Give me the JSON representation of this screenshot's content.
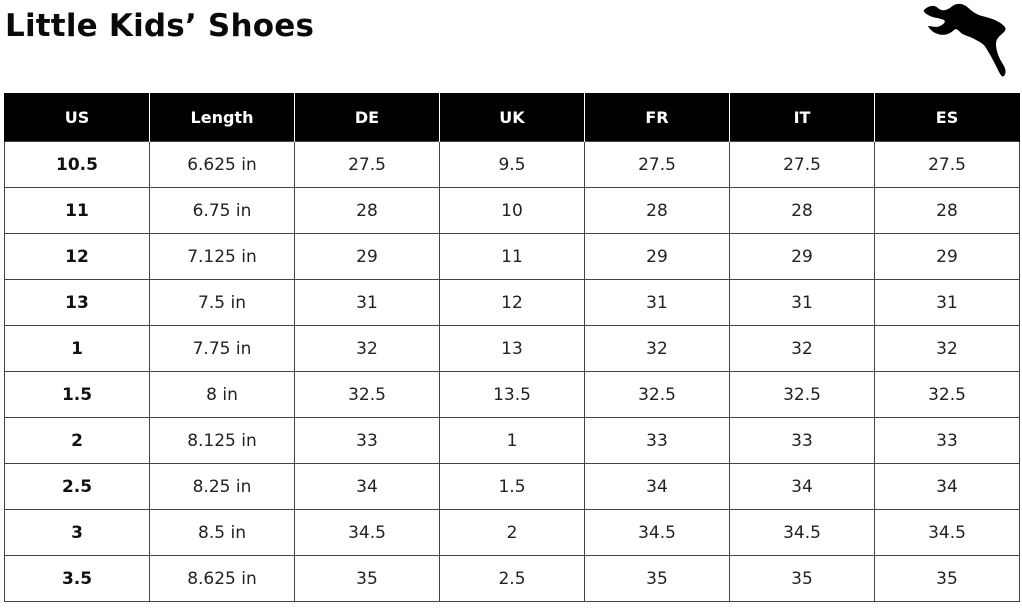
{
  "title": "Little Kids’ Shoes",
  "logo": {
    "icon": "puma-logo-icon"
  },
  "table": {
    "headers": [
      "US",
      "Length",
      "DE",
      "UK",
      "FR",
      "IT",
      "ES"
    ],
    "rows": [
      [
        "10.5",
        "6.625 in",
        "27.5",
        "9.5",
        "27.5",
        "27.5",
        "27.5"
      ],
      [
        "11",
        "6.75 in",
        "28",
        "10",
        "28",
        "28",
        "28"
      ],
      [
        "12",
        "7.125 in",
        "29",
        "11",
        "29",
        "29",
        "29"
      ],
      [
        "13",
        "7.5 in",
        "31",
        "12",
        "31",
        "31",
        "31"
      ],
      [
        "1",
        "7.75 in",
        "32",
        "13",
        "32",
        "32",
        "32"
      ],
      [
        "1.5",
        "8 in",
        "32.5",
        "13.5",
        "32.5",
        "32.5",
        "32.5"
      ],
      [
        "2",
        "8.125 in",
        "33",
        "1",
        "33",
        "33",
        "33"
      ],
      [
        "2.5",
        "8.25 in",
        "34",
        "1.5",
        "34",
        "34",
        "34"
      ],
      [
        "3",
        "8.5 in",
        "34.5",
        "2",
        "34.5",
        "34.5",
        "34.5"
      ],
      [
        "3.5",
        "8.625 in",
        "35",
        "2.5",
        "35",
        "35",
        "35"
      ]
    ]
  }
}
